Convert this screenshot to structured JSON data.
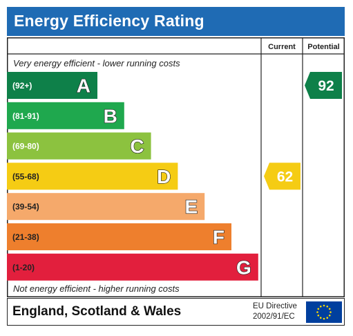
{
  "header": {
    "title": "Energy Efficiency Rating"
  },
  "chart_data": {
    "type": "bar",
    "columns": [
      "Current",
      "Potential"
    ],
    "top_note": "Very energy efficient - lower running costs",
    "bottom_note": "Not energy efficient - higher running costs",
    "bands": [
      {
        "letter": "A",
        "range": "(92+)",
        "min": 92,
        "color": "#0e8049"
      },
      {
        "letter": "B",
        "range": "(81-91)",
        "min": 81,
        "color": "#1fa84e"
      },
      {
        "letter": "C",
        "range": "(69-80)",
        "min": 69,
        "color": "#8cc23f"
      },
      {
        "letter": "D",
        "range": "(55-68)",
        "min": 55,
        "color": "#f5cc14"
      },
      {
        "letter": "E",
        "range": "(39-54)",
        "min": 39,
        "color": "#f5a96b"
      },
      {
        "letter": "F",
        "range": "(21-38)",
        "min": 21,
        "color": "#ee7f2d"
      },
      {
        "letter": "G",
        "range": "(1-20)",
        "min": 1,
        "color": "#e21f3d"
      }
    ],
    "ratings": {
      "current": 62,
      "potential": 92
    }
  },
  "footer": {
    "region": "England, Scotland & Wales",
    "directive_line1": "EU Directive",
    "directive_line2": "2002/91/EC"
  }
}
